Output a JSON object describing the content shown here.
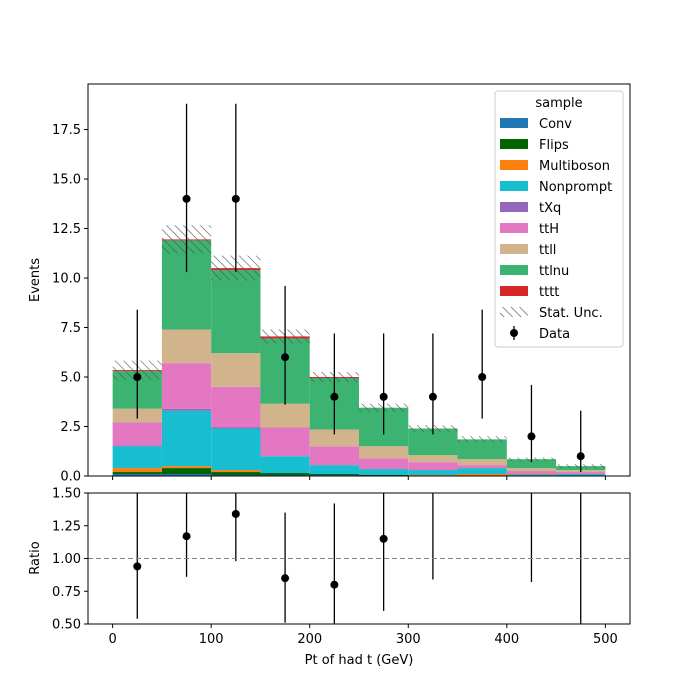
{
  "chart_data": {
    "type": "bar",
    "subtype": "stacked-histogram-with-ratio",
    "bin_edges": [
      0,
      50,
      100,
      150,
      200,
      250,
      300,
      350,
      400,
      450,
      500
    ],
    "xlabel": "Pt of had t (GeV)",
    "ylabel": "Events",
    "ratio_ylabel": "Ratio",
    "xlim": [
      -25,
      525
    ],
    "ylim": [
      0,
      19.8
    ],
    "ratio_ylim": [
      0.5,
      1.5
    ],
    "x_ticks": [
      "0",
      "100",
      "200",
      "300",
      "400",
      "500"
    ],
    "x_tick_values": [
      0,
      100,
      200,
      300,
      400,
      500
    ],
    "y_ticks": [
      "0.0",
      "2.5",
      "5.0",
      "7.5",
      "10.0",
      "12.5",
      "15.0",
      "17.5"
    ],
    "y_tick_values": [
      0,
      2.5,
      5,
      7.5,
      10,
      12.5,
      15,
      17.5
    ],
    "ratio_y_ticks": [
      "0.50",
      "0.75",
      "1.00",
      "1.25",
      "1.50"
    ],
    "ratio_y_tick_values": [
      0.5,
      0.75,
      1.0,
      1.25,
      1.5
    ],
    "ratio_reference": 1.0,
    "legend_title": "sample",
    "legend_position": "top-right",
    "stat_unc_label": "Stat. Unc.",
    "data_label": "Data",
    "series": [
      {
        "name": "Conv",
        "color": "#1f77b4",
        "values": [
          0.1,
          0.1,
          0.05,
          0.05,
          0.05,
          0.0,
          0.0,
          0.0,
          0.0,
          0.0
        ]
      },
      {
        "name": "Flips",
        "color": "#006400",
        "values": [
          0.1,
          0.3,
          0.15,
          0.1,
          0.05,
          0.05,
          0.0,
          0.0,
          0.0,
          0.0
        ]
      },
      {
        "name": "Multiboson",
        "color": "#ff7f0e",
        "values": [
          0.2,
          0.1,
          0.1,
          0.0,
          0.0,
          0.0,
          0.05,
          0.1,
          0.05,
          0.0
        ]
      },
      {
        "name": "Nonprompt",
        "color": "#17becf",
        "values": [
          1.1,
          2.8,
          2.1,
          0.85,
          0.45,
          0.3,
          0.25,
          0.3,
          0.05,
          0.1
        ]
      },
      {
        "name": "tXq",
        "color": "#9467bd",
        "values": [
          0.05,
          0.1,
          0.05,
          0.0,
          0.0,
          0.0,
          0.0,
          0.0,
          0.0,
          0.0
        ]
      },
      {
        "name": "ttH",
        "color": "#e377c2",
        "values": [
          1.15,
          2.3,
          2.05,
          1.45,
          0.95,
          0.55,
          0.4,
          0.15,
          0.15,
          0.1
        ]
      },
      {
        "name": "ttll",
        "color": "#d2b48c",
        "values": [
          0.7,
          1.7,
          1.7,
          1.2,
          0.85,
          0.6,
          0.35,
          0.3,
          0.15,
          0.1
        ]
      },
      {
        "name": "ttlnu",
        "color": "#3cb371",
        "values": [
          1.9,
          4.5,
          4.2,
          3.3,
          2.6,
          1.95,
          1.35,
          1.0,
          0.45,
          0.2
        ]
      },
      {
        "name": "tttt",
        "color": "#d62728",
        "values": [
          0.05,
          0.05,
          0.1,
          0.1,
          0.05,
          0.0,
          0.0,
          0.0,
          0.0,
          0.0
        ]
      }
    ],
    "stat_unc_fraction": [
      0.09,
      0.06,
      0.06,
      0.05,
      0.05,
      0.06,
      0.07,
      0.09,
      0.1,
      0.2
    ],
    "data": {
      "x": [
        25,
        75,
        125,
        175,
        225,
        275,
        325,
        375,
        425,
        475
      ],
      "y": [
        5,
        14,
        14,
        6,
        4,
        4,
        4,
        5,
        2,
        1
      ],
      "yerr_low": [
        2.1,
        3.7,
        3.7,
        2.4,
        1.9,
        1.9,
        1.9,
        2.1,
        1.3,
        0.8
      ],
      "yerr_high": [
        3.4,
        4.8,
        4.8,
        3.6,
        3.2,
        3.2,
        3.2,
        3.4,
        2.6,
        2.3
      ]
    },
    "ratio": {
      "x": [
        25,
        75,
        125,
        175,
        225,
        275,
        325,
        375,
        425,
        475
      ],
      "y": [
        0.94,
        1.17,
        1.34,
        0.85,
        0.8,
        1.15,
        null,
        null,
        null,
        null
      ],
      "err_low": [
        0.4,
        0.31,
        0.36,
        0.34,
        0.38,
        0.55,
        null,
        null,
        null,
        null
      ],
      "err_high": [
        0.64,
        0.4,
        0.46,
        0.5,
        0.62,
        0.92,
        null,
        null,
        null,
        null
      ],
      "err_bars_only": [
        {
          "x": 325,
          "low": 0.84,
          "high": 1.5
        },
        {
          "x": 425,
          "low": 0.82,
          "high": 1.5
        },
        {
          "x": 475,
          "low": 0.5,
          "high": 1.5
        }
      ]
    }
  }
}
